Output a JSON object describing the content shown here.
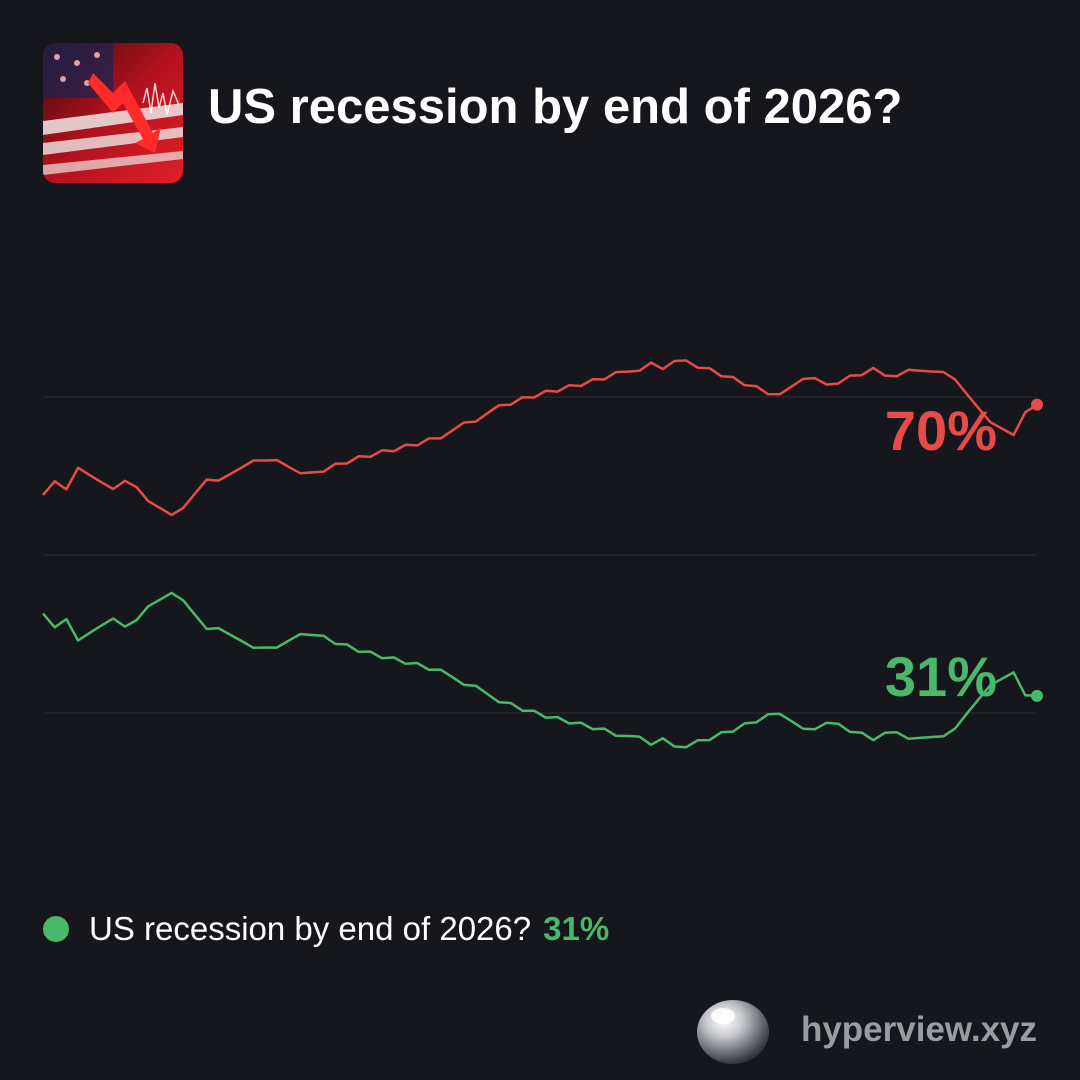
{
  "title": "US recession by end of 2026?",
  "icon": "us-flag-market-decline-icon",
  "colors": {
    "background": "#15171c",
    "yes": "#4ab86a",
    "no": "#e84a47",
    "grid": "#2a2c32",
    "brand": "#9a9ca2"
  },
  "legend": {
    "label": "US recession by end of 2026?",
    "value": "31%"
  },
  "brand": {
    "logo": "silver-orb-logo-icon",
    "text": "hyperview.xyz"
  },
  "chart_data": {
    "type": "line",
    "ylim": [
      0,
      100
    ],
    "grid": true,
    "series": [
      {
        "end_label": "70%",
        "color": "#e84a47",
        "values": [
          58,
          60,
          59,
          62,
          61,
          60,
          59,
          60,
          59,
          57,
          56,
          55,
          56,
          58,
          60,
          60,
          61,
          62,
          63,
          63,
          63,
          62,
          61,
          61,
          61,
          62,
          62,
          63,
          63,
          64,
          64,
          65,
          65,
          66,
          66,
          67,
          68,
          68,
          69,
          70,
          70,
          71,
          71,
          72,
          72,
          73,
          73,
          74,
          74,
          75,
          75,
          75,
          76,
          75,
          76,
          76,
          75,
          75,
          74,
          74,
          73,
          73,
          72,
          72,
          73,
          74,
          74,
          73,
          73,
          74,
          74,
          75,
          74,
          74,
          75,
          75,
          75,
          75,
          74,
          72,
          70,
          68,
          67,
          66,
          69,
          70
        ]
      },
      {
        "end_label": "31%",
        "color": "#4ab86a",
        "values": [
          42,
          40,
          41,
          38,
          39,
          40,
          41,
          40,
          41,
          43,
          44,
          45,
          44,
          42,
          40,
          40,
          39,
          38,
          37,
          37,
          37,
          38,
          39,
          39,
          39,
          38,
          38,
          37,
          37,
          36,
          36,
          35,
          35,
          34,
          34,
          33,
          32,
          32,
          31,
          30,
          30,
          29,
          29,
          28,
          28,
          27,
          27,
          26,
          26,
          25,
          25,
          25,
          24,
          25,
          24,
          24,
          25,
          25,
          26,
          26,
          27,
          27,
          28,
          28,
          27,
          26,
          26,
          27,
          27,
          26,
          26,
          25,
          26,
          26,
          25,
          25,
          25,
          25,
          26,
          28,
          30,
          32,
          33,
          34,
          31,
          31
        ]
      }
    ]
  }
}
